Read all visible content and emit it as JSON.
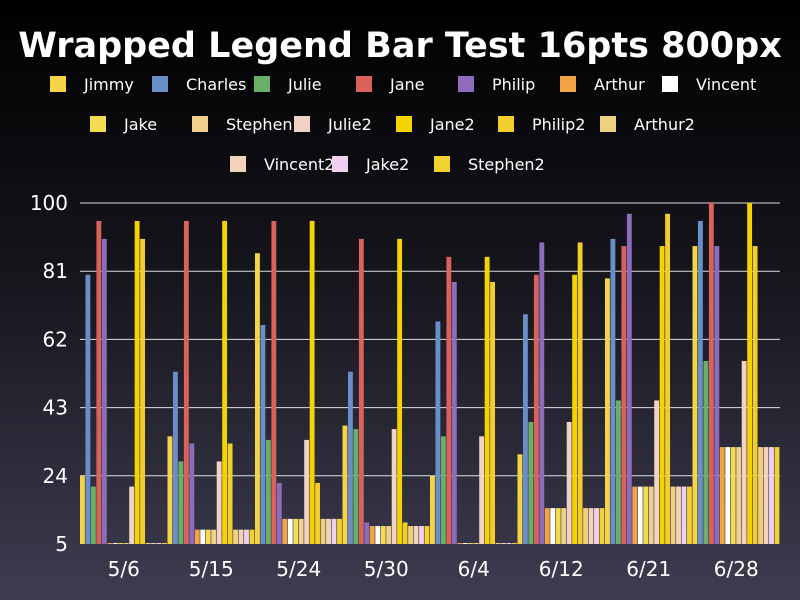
{
  "chart_data": {
    "type": "bar",
    "title": "Wrapped Legend Bar Test 16pts 800px",
    "categories": [
      "5/6",
      "5/15",
      "5/24",
      "5/30",
      "6/4",
      "6/12",
      "6/21",
      "6/28"
    ],
    "ylim": [
      5,
      100
    ],
    "yticks": [
      5,
      24,
      43,
      62,
      81,
      100
    ],
    "grid": true,
    "legend_position": "top",
    "series": [
      {
        "name": "Jimmy",
        "color": "#f5d547",
        "values": [
          24,
          35,
          86,
          38,
          24,
          30,
          79,
          88
        ]
      },
      {
        "name": "Charles",
        "color": "#6a8fc8",
        "values": [
          80,
          53,
          66,
          53,
          67,
          69,
          90,
          95
        ]
      },
      {
        "name": "Julie",
        "color": "#6aae6a",
        "values": [
          21,
          28,
          34,
          37,
          35,
          39,
          45,
          56
        ]
      },
      {
        "name": "Jane",
        "color": "#d9625a",
        "values": [
          95,
          95,
          95,
          90,
          85,
          80,
          88,
          100
        ]
      },
      {
        "name": "Philip",
        "color": "#8e6cbc",
        "values": [
          90,
          33,
          22,
          11,
          78,
          89,
          97,
          88
        ]
      },
      {
        "name": "Arthur",
        "color": "#f2a444",
        "values": [
          5,
          9,
          12,
          10,
          5,
          15,
          21,
          32
        ]
      },
      {
        "name": "Vincent",
        "color": "#ffffff",
        "values": [
          5,
          9,
          12,
          10,
          5,
          15,
          21,
          32
        ]
      },
      {
        "name": "Jake",
        "color": "#f3dc52",
        "values": [
          5,
          9,
          12,
          10,
          5,
          15,
          21,
          32
        ]
      },
      {
        "name": "Stephen",
        "color": "#f0d08c",
        "values": [
          5,
          9,
          12,
          10,
          5,
          15,
          21,
          32
        ]
      },
      {
        "name": "Julie2",
        "color": "#f2d2c6",
        "values": [
          21,
          28,
          34,
          37,
          35,
          39,
          45,
          56
        ]
      },
      {
        "name": "Jane2",
        "color": "#f5d300",
        "values": [
          95,
          95,
          95,
          90,
          85,
          80,
          88,
          100
        ]
      },
      {
        "name": "Philip2",
        "color": "#f2cd2e",
        "values": [
          90,
          33,
          22,
          11,
          78,
          89,
          97,
          88
        ]
      },
      {
        "name": "Arthur2",
        "color": "#efd07c",
        "values": [
          5,
          9,
          12,
          10,
          5,
          15,
          21,
          32
        ]
      },
      {
        "name": "Vincent2",
        "color": "#f3d4b8",
        "values": [
          5,
          9,
          12,
          10,
          5,
          15,
          21,
          32
        ]
      },
      {
        "name": "Jake2",
        "color": "#f0d0f0",
        "values": [
          5,
          9,
          12,
          10,
          5,
          15,
          21,
          32
        ]
      },
      {
        "name": "Stephen2",
        "color": "#f2d230",
        "values": [
          5,
          9,
          12,
          10,
          5,
          15,
          21,
          32
        ]
      }
    ]
  }
}
